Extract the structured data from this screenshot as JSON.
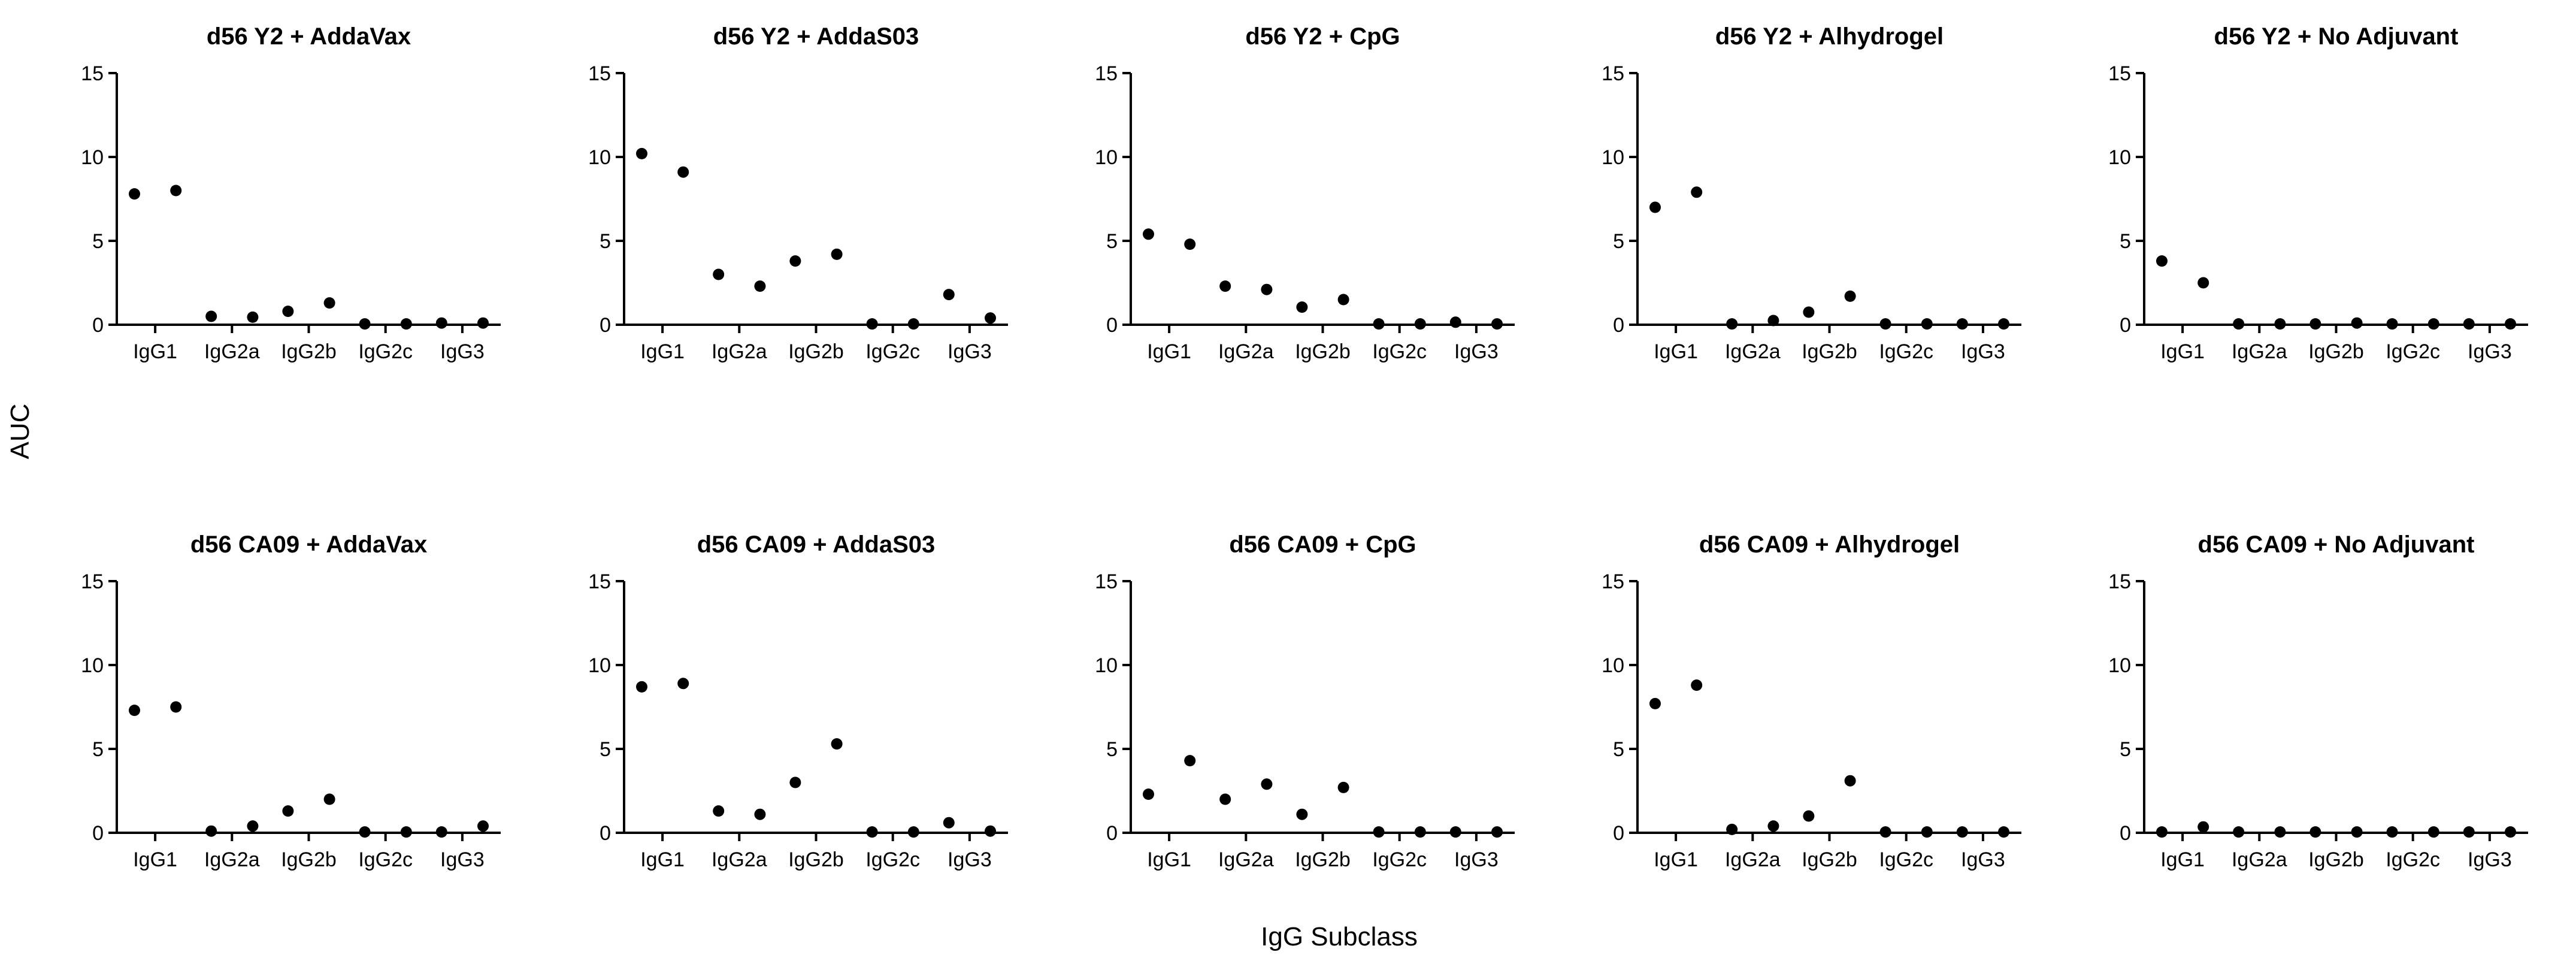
{
  "ylabel": "AUC",
  "xlabel": "IgG Subclass",
  "chart_data": [
    {
      "type": "scatter",
      "title": "d56 Y2 + AddaVax",
      "ylim": [
        0,
        15
      ],
      "yticks": [
        0,
        5,
        10,
        15
      ],
      "categories": [
        "IgG1",
        "IgG2a",
        "IgG2b",
        "IgG2c",
        "IgG3"
      ],
      "points": [
        [
          7.8,
          8.0
        ],
        [
          0.5,
          0.45
        ],
        [
          0.8,
          1.3
        ],
        [
          0.05,
          0.05
        ],
        [
          0.1,
          0.1
        ]
      ]
    },
    {
      "type": "scatter",
      "title": "d56 Y2 + AddaS03",
      "ylim": [
        0,
        15
      ],
      "yticks": [
        0,
        5,
        10,
        15
      ],
      "categories": [
        "IgG1",
        "IgG2a",
        "IgG2b",
        "IgG2c",
        "IgG3"
      ],
      "points": [
        [
          10.2,
          9.1
        ],
        [
          3.0,
          2.3
        ],
        [
          3.8,
          4.2
        ],
        [
          0.05,
          0.05
        ],
        [
          1.8,
          0.4
        ]
      ]
    },
    {
      "type": "scatter",
      "title": "d56 Y2 + CpG",
      "ylim": [
        0,
        15
      ],
      "yticks": [
        0,
        5,
        10,
        15
      ],
      "categories": [
        "IgG1",
        "IgG2a",
        "IgG2b",
        "IgG2c",
        "IgG3"
      ],
      "points": [
        [
          5.4,
          4.8
        ],
        [
          2.3,
          2.1
        ],
        [
          1.05,
          1.5
        ],
        [
          0.05,
          0.05
        ],
        [
          0.15,
          0.05
        ]
      ]
    },
    {
      "type": "scatter",
      "title": "d56 Y2 + Alhydrogel",
      "ylim": [
        0,
        15
      ],
      "yticks": [
        0,
        5,
        10,
        15
      ],
      "categories": [
        "IgG1",
        "IgG2a",
        "IgG2b",
        "IgG2c",
        "IgG3"
      ],
      "points": [
        [
          7.0,
          7.9
        ],
        [
          0.05,
          0.25
        ],
        [
          0.75,
          1.7
        ],
        [
          0.05,
          0.05
        ],
        [
          0.05,
          0.05
        ]
      ]
    },
    {
      "type": "scatter",
      "title": "d56 Y2 + No Adjuvant",
      "ylim": [
        0,
        15
      ],
      "yticks": [
        0,
        5,
        10,
        15
      ],
      "categories": [
        "IgG1",
        "IgG2a",
        "IgG2b",
        "IgG2c",
        "IgG3"
      ],
      "points": [
        [
          3.8,
          2.5
        ],
        [
          0.05,
          0.05
        ],
        [
          0.05,
          0.1
        ],
        [
          0.05,
          0.05
        ],
        [
          0.05,
          0.05
        ]
      ]
    },
    {
      "type": "scatter",
      "title": "d56 CA09 + AddaVax",
      "ylim": [
        0,
        15
      ],
      "yticks": [
        0,
        5,
        10,
        15
      ],
      "categories": [
        "IgG1",
        "IgG2a",
        "IgG2b",
        "IgG2c",
        "IgG3"
      ],
      "points": [
        [
          7.3,
          7.5
        ],
        [
          0.1,
          0.4
        ],
        [
          1.3,
          2.0
        ],
        [
          0.05,
          0.05
        ],
        [
          0.05,
          0.4
        ]
      ]
    },
    {
      "type": "scatter",
      "title": "d56 CA09 + AddaS03",
      "ylim": [
        0,
        15
      ],
      "yticks": [
        0,
        5,
        10,
        15
      ],
      "categories": [
        "IgG1",
        "IgG2a",
        "IgG2b",
        "IgG2c",
        "IgG3"
      ],
      "points": [
        [
          8.7,
          8.9
        ],
        [
          1.3,
          1.1
        ],
        [
          3.0,
          5.3
        ],
        [
          0.05,
          0.05
        ],
        [
          0.6,
          0.1
        ]
      ]
    },
    {
      "type": "scatter",
      "title": "d56 CA09 + CpG",
      "ylim": [
        0,
        15
      ],
      "yticks": [
        0,
        5,
        10,
        15
      ],
      "categories": [
        "IgG1",
        "IgG2a",
        "IgG2b",
        "IgG2c",
        "IgG3"
      ],
      "points": [
        [
          2.3,
          4.3
        ],
        [
          2.0,
          2.9
        ],
        [
          1.1,
          2.7
        ],
        [
          0.05,
          0.05
        ],
        [
          0.05,
          0.05
        ]
      ]
    },
    {
      "type": "scatter",
      "title": "d56 CA09 + Alhydrogel",
      "ylim": [
        0,
        15
      ],
      "yticks": [
        0,
        5,
        10,
        15
      ],
      "categories": [
        "IgG1",
        "IgG2a",
        "IgG2b",
        "IgG2c",
        "IgG3"
      ],
      "points": [
        [
          7.7,
          8.8
        ],
        [
          0.2,
          0.4
        ],
        [
          1.0,
          3.1
        ],
        [
          0.05,
          0.05
        ],
        [
          0.05,
          0.05
        ]
      ]
    },
    {
      "type": "scatter",
      "title": "d56 CA09 + No Adjuvant",
      "ylim": [
        0,
        15
      ],
      "yticks": [
        0,
        5,
        10,
        15
      ],
      "categories": [
        "IgG1",
        "IgG2a",
        "IgG2b",
        "IgG2c",
        "IgG3"
      ],
      "points": [
        [
          0.05,
          0.35
        ],
        [
          0.05,
          0.05
        ],
        [
          0.05,
          0.05
        ],
        [
          0.05,
          0.05
        ],
        [
          0.05,
          0.05
        ]
      ]
    }
  ]
}
